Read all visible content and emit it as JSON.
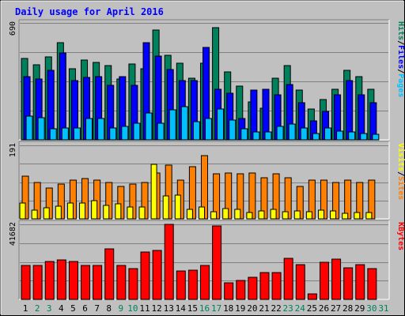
{
  "title": "Daily usage for April 2016",
  "colors": {
    "background": "#C0C0C0",
    "panel": "#C0C0C0",
    "title": "#0000FF",
    "hits": "#00805C",
    "files": "#0000FF",
    "pages": "#00C0FF",
    "visits": "#FFFF00",
    "sites": "#FF8000",
    "kbytes": "#FF0000",
    "weekday_label": "#000000",
    "weekend_label": "#00805C",
    "grid": "#808080"
  },
  "chart_data": [
    {
      "type": "bar",
      "panel": "hits-files-pages",
      "ymax_label": "690",
      "ylim": [
        0,
        690
      ],
      "x": [
        1,
        2,
        3,
        4,
        5,
        6,
        7,
        8,
        9,
        10,
        11,
        12,
        13,
        14,
        15,
        16,
        17,
        18,
        19,
        20,
        21,
        22,
        23,
        24,
        25,
        26,
        27,
        28,
        29,
        30
      ],
      "legend": [
        {
          "label": "Pages",
          "color": "#00C0FF"
        },
        {
          "label": "/",
          "color": "#000000"
        },
        {
          "label": "Files",
          "color": "#0000FF"
        },
        {
          "label": "/",
          "color": "#000000"
        },
        {
          "label": "Hits",
          "color": "#00805C"
        }
      ],
      "series": [
        {
          "name": "Hits",
          "color": "#00805C",
          "values": [
            478,
            445,
            490,
            575,
            420,
            470,
            458,
            440,
            357,
            446,
            418,
            650,
            500,
            452,
            365,
            450,
            662,
            403,
            318,
            222,
            187,
            365,
            440,
            293,
            180,
            238,
            300,
            409,
            372,
            300
          ]
        },
        {
          "name": "Files",
          "color": "#0000FF",
          "values": [
            375,
            360,
            410,
            515,
            350,
            370,
            375,
            320,
            375,
            322,
            573,
            495,
            415,
            350,
            350,
            545,
            300,
            275,
            125,
            292,
            300,
            268,
            328,
            219,
            110,
            166,
            264,
            348,
            268,
            217
          ]
        },
        {
          "name": "Pages",
          "color": "#00C0FF",
          "values": [
            140,
            132,
            65,
            70,
            68,
            124,
            128,
            70,
            78,
            98,
            158,
            98,
            175,
            195,
            105,
            125,
            183,
            117,
            65,
            45,
            45,
            80,
            92,
            70,
            35,
            70,
            51,
            45,
            37,
            31
          ]
        }
      ]
    },
    {
      "type": "bar",
      "panel": "visits-sites",
      "ymax_label": "191",
      "ylim": [
        0,
        191
      ],
      "x": [
        1,
        2,
        3,
        4,
        5,
        6,
        7,
        8,
        9,
        10,
        11,
        12,
        13,
        14,
        15,
        16,
        17,
        18,
        19,
        20,
        21,
        22,
        23,
        24,
        25,
        26,
        27,
        28,
        29,
        30
      ],
      "legend": [
        {
          "label": "Sites",
          "color": "#FF8000"
        },
        {
          "label": "/",
          "color": "#000000"
        },
        {
          "label": "Visits",
          "color": "#FFFF00"
        }
      ],
      "series": [
        {
          "name": "Sites",
          "color": "#FF8000",
          "values": [
            110,
            95,
            80,
            90,
            100,
            105,
            100,
            95,
            85,
            90,
            95,
            120,
            140,
            100,
            135,
            165,
            117,
            120,
            117,
            120,
            107,
            117,
            107,
            85,
            100,
            100,
            95,
            100,
            95,
            100
          ]
        },
        {
          "name": "Visits",
          "color": "#FFFF00",
          "values": [
            42,
            22,
            28,
            33,
            42,
            42,
            48,
            34,
            40,
            30,
            30,
            142,
            60,
            61,
            25,
            30,
            18,
            26,
            25,
            16,
            21,
            25,
            18,
            20,
            18,
            22,
            20,
            15,
            17,
            16
          ]
        }
      ]
    },
    {
      "type": "bar",
      "panel": "kbytes",
      "ymax_label": "41682",
      "ylim": [
        0,
        41682
      ],
      "x": [
        1,
        2,
        3,
        4,
        5,
        6,
        7,
        8,
        9,
        10,
        11,
        12,
        13,
        14,
        15,
        16,
        17,
        18,
        19,
        20,
        21,
        22,
        23,
        24,
        25,
        26,
        27,
        28,
        29,
        30
      ],
      "legend": [
        {
          "label": "KBytes",
          "color": "#FF0000"
        }
      ],
      "series": [
        {
          "name": "KBytes",
          "color": "#FF0000",
          "values": [
            18700,
            18700,
            21250,
            21800,
            21250,
            18700,
            18700,
            28000,
            18700,
            17200,
            26400,
            27200,
            41682,
            15900,
            16400,
            18700,
            41000,
            9300,
            10500,
            12200,
            15000,
            14800,
            22600,
            19300,
            3200,
            20600,
            22400,
            17700,
            19300,
            17000
          ]
        }
      ]
    }
  ],
  "x_labels": [
    {
      "day": "1",
      "weekend": false
    },
    {
      "day": "2",
      "weekend": true
    },
    {
      "day": "3",
      "weekend": true
    },
    {
      "day": "4",
      "weekend": false
    },
    {
      "day": "5",
      "weekend": false
    },
    {
      "day": "6",
      "weekend": false
    },
    {
      "day": "7",
      "weekend": false
    },
    {
      "day": "8",
      "weekend": false
    },
    {
      "day": "9",
      "weekend": true
    },
    {
      "day": "10",
      "weekend": true
    },
    {
      "day": "11",
      "weekend": false
    },
    {
      "day": "12",
      "weekend": false
    },
    {
      "day": "13",
      "weekend": false
    },
    {
      "day": "14",
      "weekend": false
    },
    {
      "day": "15",
      "weekend": false
    },
    {
      "day": "16",
      "weekend": true
    },
    {
      "day": "17",
      "weekend": true
    },
    {
      "day": "18",
      "weekend": false
    },
    {
      "day": "19",
      "weekend": false
    },
    {
      "day": "20",
      "weekend": false
    },
    {
      "day": "21",
      "weekend": false
    },
    {
      "day": "22",
      "weekend": false
    },
    {
      "day": "23",
      "weekend": true
    },
    {
      "day": "24",
      "weekend": true
    },
    {
      "day": "25",
      "weekend": false
    },
    {
      "day": "26",
      "weekend": false
    },
    {
      "day": "27",
      "weekend": false
    },
    {
      "day": "28",
      "weekend": false
    },
    {
      "day": "29",
      "weekend": false
    },
    {
      "day": "30",
      "weekend": true
    },
    {
      "day": "31",
      "weekend": true
    }
  ]
}
